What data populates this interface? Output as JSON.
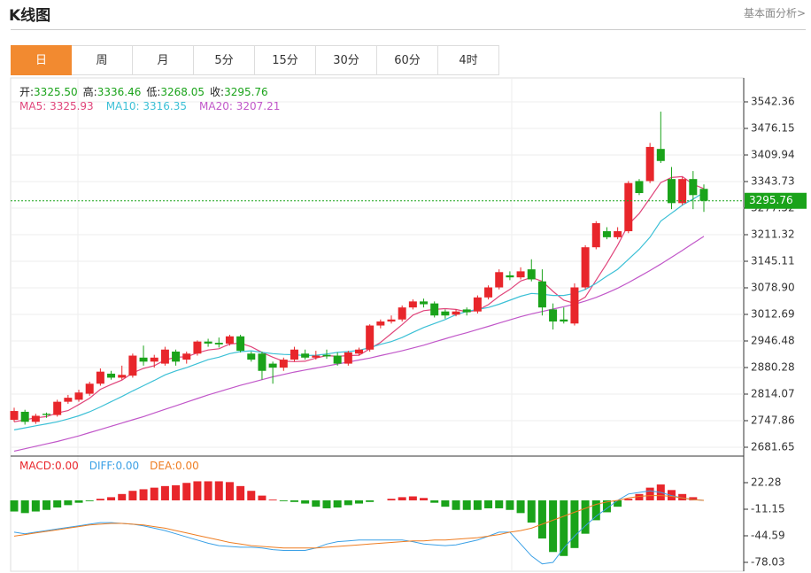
{
  "header": {
    "title": "K线图",
    "link": "基本面分析>"
  },
  "tabs": [
    "日",
    "周",
    "月",
    "5分",
    "15分",
    "30分",
    "60分",
    "4时"
  ],
  "active_tab": 0,
  "chart_data": [
    {
      "type": "candlestick",
      "ylim": [
        2659.58,
        3601.96
      ],
      "yticks": [
        3542.36,
        3476.15,
        3409.94,
        3343.73,
        3277.52,
        3211.32,
        3145.11,
        {
          "value": 3078.9,
          "label": "3078.90"
        },
        3012.69,
        2946.48,
        2880.28,
        2814.07,
        2747.86,
        2681.65
      ],
      "up_color": "#e8262b",
      "down_color": "#1aa31a",
      "last_line_color": "#1aa31a",
      "ohlc_info": [
        {
          "label": "开:",
          "value_label": "3325.50"
        },
        {
          "label": "高:",
          "value_label": "3336.46"
        },
        {
          "label": "低:",
          "value_label": "3268.05"
        },
        {
          "label": "收:",
          "value_label": "3295.76"
        }
      ],
      "open": [
        2750,
        2770,
        2745,
        2765,
        2762,
        2795,
        2800,
        2815,
        2840,
        2865,
        2855,
        2860,
        2905,
        2895,
        2890,
        2920,
        2900,
        2915,
        2945,
        2942,
        2940,
        2958,
        2915,
        2915,
        2890,
        2880,
        2900,
        2915,
        2905,
        2912,
        2910,
        2890,
        2915,
        2925,
        2985,
        2995,
        3000,
        3030,
        3045,
        3040,
        3020,
        3012,
        3025,
        3020,
        3055,
        3080,
        3110,
        3105,
        3125,
        3095,
        3025,
        3000,
        2990,
        3080,
        3180,
        3220,
        3205,
        3220,
        3345,
        3345,
        3425,
        3350,
        3290,
        3350,
        3325.5
      ],
      "high": [
        2780,
        2775,
        2765,
        2768,
        2800,
        2812,
        2825,
        2845,
        2878,
        2872,
        2885,
        2915,
        2935,
        2912,
        2932,
        2925,
        2920,
        2948,
        2952,
        2955,
        2962,
        2962,
        2920,
        2920,
        2895,
        2905,
        2932,
        2925,
        2922,
        2925,
        2918,
        2922,
        2930,
        2988,
        3000,
        3010,
        3035,
        3050,
        3052,
        3045,
        3025,
        3025,
        3030,
        3060,
        3085,
        3125,
        3120,
        3130,
        3150,
        3125,
        3040,
        3030,
        3090,
        3185,
        3245,
        3230,
        3230,
        3345,
        3350,
        3440,
        3518,
        3380,
        3355,
        3370,
        3336.46
      ],
      "low": [
        2745,
        2738,
        2740,
        2755,
        2758,
        2790,
        2795,
        2810,
        2835,
        2850,
        2850,
        2855,
        2885,
        2880,
        2885,
        2885,
        2890,
        2910,
        2932,
        2930,
        2935,
        2918,
        2895,
        2850,
        2840,
        2872,
        2895,
        2900,
        2900,
        2902,
        2885,
        2885,
        2910,
        2920,
        2978,
        2990,
        2995,
        3025,
        3030,
        3005,
        3002,
        3008,
        3010,
        3015,
        3050,
        3075,
        3098,
        3100,
        3095,
        3010,
        2975,
        2990,
        2985,
        3075,
        3175,
        3200,
        3200,
        3215,
        3310,
        3340,
        3390,
        3275,
        3285,
        3275,
        3268.05
      ],
      "close": [
        2772,
        2745,
        2760,
        2762,
        2795,
        2805,
        2818,
        2840,
        2870,
        2855,
        2862,
        2910,
        2895,
        2905,
        2925,
        2895,
        2915,
        2945,
        2940,
        2938,
        2958,
        2922,
        2900,
        2872,
        2880,
        2900,
        2925,
        2905,
        2910,
        2908,
        2890,
        2918,
        2925,
        2985,
        2995,
        3000,
        3030,
        3045,
        3038,
        3010,
        3010,
        3020,
        3018,
        3055,
        3080,
        3118,
        3105,
        3120,
        3100,
        3030,
        2995,
        2995,
        3080,
        3180,
        3240,
        3205,
        3220,
        3340,
        3315,
        3430,
        3395,
        3290,
        3350,
        3310,
        3295.76
      ],
      "series": [
        {
          "name": "MA5",
          "color": "#e0457b",
          "current_label": "3325.93",
          "values": [
            2745,
            2750,
            2755,
            2758,
            2767,
            2773,
            2788,
            2804,
            2826,
            2838,
            2849,
            2867,
            2878,
            2885,
            2899,
            2906,
            2907,
            2917,
            2924,
            2927,
            2939,
            2941,
            2932,
            2918,
            2906,
            2896,
            2895,
            2896,
            2904,
            2910,
            2908,
            2910,
            2911,
            2927,
            2943,
            2965,
            2987,
            3011,
            3022,
            3025,
            3027,
            3025,
            3019,
            3023,
            3037,
            3058,
            3075,
            3096,
            3105,
            3095,
            3070,
            3048,
            3040,
            3056,
            3098,
            3140,
            3185,
            3237,
            3264,
            3302,
            3341,
            3354,
            3356,
            3337,
            3325.93
          ]
        },
        {
          "name": "MA10",
          "color": "#3cc0d6",
          "current_label": "3316.35",
          "values": [
            2725,
            2730,
            2735,
            2740,
            2745,
            2752,
            2760,
            2770,
            2782,
            2795,
            2808,
            2822,
            2835,
            2848,
            2862,
            2872,
            2880,
            2890,
            2900,
            2906,
            2915,
            2920,
            2922,
            2918,
            2915,
            2913,
            2912,
            2910,
            2911,
            2914,
            2918,
            2920,
            2923,
            2930,
            2938,
            2945,
            2955,
            2968,
            2980,
            2990,
            3000,
            3012,
            3020,
            3025,
            3030,
            3038,
            3048,
            3058,
            3065,
            3063,
            3060,
            3060,
            3065,
            3075,
            3090,
            3108,
            3125,
            3150,
            3175,
            3205,
            3245,
            3265,
            3285,
            3300,
            3316.35
          ]
        },
        {
          "name": "MA20",
          "color": "#c157c9",
          "current_label": "3207.21",
          "values": [
            2672,
            2678,
            2684,
            2690,
            2696,
            2703,
            2710,
            2718,
            2726,
            2734,
            2742,
            2750,
            2758,
            2767,
            2776,
            2785,
            2794,
            2803,
            2812,
            2820,
            2828,
            2836,
            2843,
            2850,
            2857,
            2863,
            2869,
            2874,
            2879,
            2884,
            2889,
            2894,
            2899,
            2904,
            2910,
            2916,
            2922,
            2929,
            2936,
            2944,
            2952,
            2960,
            2967,
            2975,
            2983,
            2991,
            2999,
            3007,
            3014,
            3020,
            3026,
            3032,
            3038,
            3046,
            3055,
            3066,
            3078,
            3092,
            3107,
            3122,
            3138,
            3155,
            3172,
            3190,
            3207.21
          ]
        }
      ]
    },
    {
      "type": "macd",
      "ylim": [
        -89.2,
        53.5
      ],
      "yticks": [
        22.28,
        -11.15,
        -44.59,
        -78.03
      ],
      "up_color": "#e8262b",
      "down_color": "#1aa31a",
      "series": [
        {
          "name": "MACD",
          "color": "#e8262b",
          "current_label": "0.00",
          "values": [
            -14,
            -16,
            -14,
            -12,
            -9,
            -6,
            -3,
            -1,
            2,
            4,
            8,
            12,
            14,
            16,
            18,
            19,
            22,
            24,
            24,
            24,
            23,
            18,
            12,
            6,
            1,
            -1,
            -2,
            -4,
            -8,
            -10,
            -9,
            -6,
            -4,
            -2,
            0,
            2,
            4,
            5,
            3,
            -3,
            -8,
            -12,
            -12,
            -12,
            -10,
            -10,
            -12,
            -16,
            -28,
            -48,
            -65,
            -70,
            -60,
            -42,
            -25,
            -15,
            -8,
            2,
            8,
            16,
            20,
            13,
            8,
            4,
            0
          ]
        },
        {
          "name": "DIFF",
          "color": "#3aa0e6",
          "current_label": "0.00",
          "values": [
            -40,
            -42,
            -40,
            -38,
            -36,
            -34,
            -32,
            -30,
            -28,
            -28,
            -29,
            -30,
            -32,
            -35,
            -38,
            -42,
            -46,
            -50,
            -54,
            -57,
            -58,
            -59,
            -59,
            -60,
            -62,
            -63,
            -63,
            -63,
            -60,
            -55,
            -52,
            -51,
            -50,
            -50,
            -50,
            -50,
            -50,
            -52,
            -55,
            -56,
            -57,
            -56,
            -53,
            -50,
            -45,
            -40,
            -40,
            -55,
            -70,
            -80,
            -78,
            -60,
            -45,
            -32,
            -20,
            -10,
            0,
            8,
            10,
            12,
            10,
            6,
            3,
            1,
            0
          ]
        },
        {
          "name": "DEA",
          "color": "#ee7d22",
          "current_label": "0.00",
          "values": [
            -45,
            -43,
            -41,
            -39,
            -37,
            -35,
            -33,
            -31,
            -30,
            -29,
            -29,
            -30,
            -31,
            -33,
            -35,
            -38,
            -41,
            -44,
            -47,
            -50,
            -53,
            -55,
            -57,
            -58,
            -59,
            -60,
            -60,
            -60,
            -60,
            -59,
            -58,
            -57,
            -56,
            -55,
            -54,
            -53,
            -52,
            -51,
            -51,
            -50,
            -50,
            -49,
            -48,
            -47,
            -45,
            -43,
            -40,
            -38,
            -35,
            -30,
            -25,
            -20,
            -15,
            -10,
            -5,
            -2,
            0,
            3,
            5,
            6,
            6,
            5,
            3,
            1,
            0
          ]
        }
      ]
    }
  ]
}
